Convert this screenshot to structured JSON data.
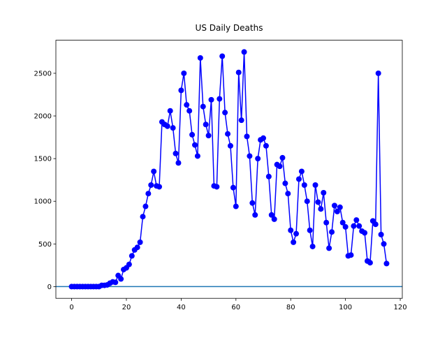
{
  "chart_data": {
    "type": "line",
    "title": "US Daily Deaths",
    "x": [
      0,
      1,
      2,
      3,
      4,
      5,
      6,
      7,
      8,
      9,
      10,
      11,
      12,
      13,
      14,
      15,
      16,
      17,
      18,
      19,
      20,
      21,
      22,
      23,
      24,
      25,
      26,
      27,
      28,
      29,
      30,
      31,
      32,
      33,
      34,
      35,
      36,
      37,
      38,
      39,
      40,
      41,
      42,
      43,
      44,
      45,
      46,
      47,
      48,
      49,
      50,
      51,
      52,
      53,
      54,
      55,
      56,
      57,
      58,
      59,
      60,
      61,
      62,
      63,
      64,
      65,
      66,
      67,
      68,
      69,
      70,
      71,
      72,
      73,
      74,
      75,
      76,
      77,
      78,
      79,
      80,
      81,
      82,
      83,
      84,
      85,
      86,
      87,
      88,
      89,
      90,
      91,
      92,
      93,
      94,
      95,
      96,
      97,
      98,
      99,
      100,
      101,
      102,
      103,
      104,
      105,
      106,
      107,
      108,
      109,
      110,
      111,
      112,
      113,
      114,
      115
    ],
    "series": [
      {
        "color": "#0000ff",
        "marker": "o",
        "values": [
          0,
          0,
          0,
          0,
          0,
          0,
          0,
          0,
          0,
          0,
          0,
          15,
          15,
          20,
          40,
          55,
          50,
          130,
          90,
          200,
          220,
          260,
          360,
          430,
          460,
          520,
          820,
          940,
          1090,
          1190,
          1350,
          1180,
          1170,
          1930,
          1900,
          1880,
          2060,
          1860,
          1560,
          1450,
          2300,
          2500,
          2130,
          2060,
          1780,
          1660,
          1530,
          2680,
          2110,
          1900,
          1770,
          2190,
          1180,
          1170,
          2200,
          2700,
          2040,
          1790,
          1650,
          1160,
          940,
          2510,
          1950,
          2750,
          1760,
          1530,
          980,
          840,
          1500,
          1720,
          1740,
          1650,
          1290,
          840,
          790,
          1430,
          1410,
          1510,
          1210,
          1090,
          660,
          520,
          620,
          1260,
          1350,
          1190,
          1000,
          660,
          470,
          1190,
          990,
          910,
          1100,
          750,
          450,
          640,
          950,
          880,
          930,
          750,
          700,
          360,
          370,
          710,
          780,
          710,
          650,
          630,
          300,
          280,
          770,
          730,
          2500,
          610,
          500,
          270
        ]
      }
    ],
    "hline": {
      "y": 0,
      "color": "#1f77b4"
    },
    "xlim": [
      -5.75,
      120.75
    ],
    "ylim": [
      -137.5,
      2887.5
    ],
    "xticks": [
      0,
      20,
      40,
      60,
      80,
      100,
      120
    ],
    "yticks": [
      0,
      500,
      1000,
      1500,
      2000,
      2500
    ]
  }
}
